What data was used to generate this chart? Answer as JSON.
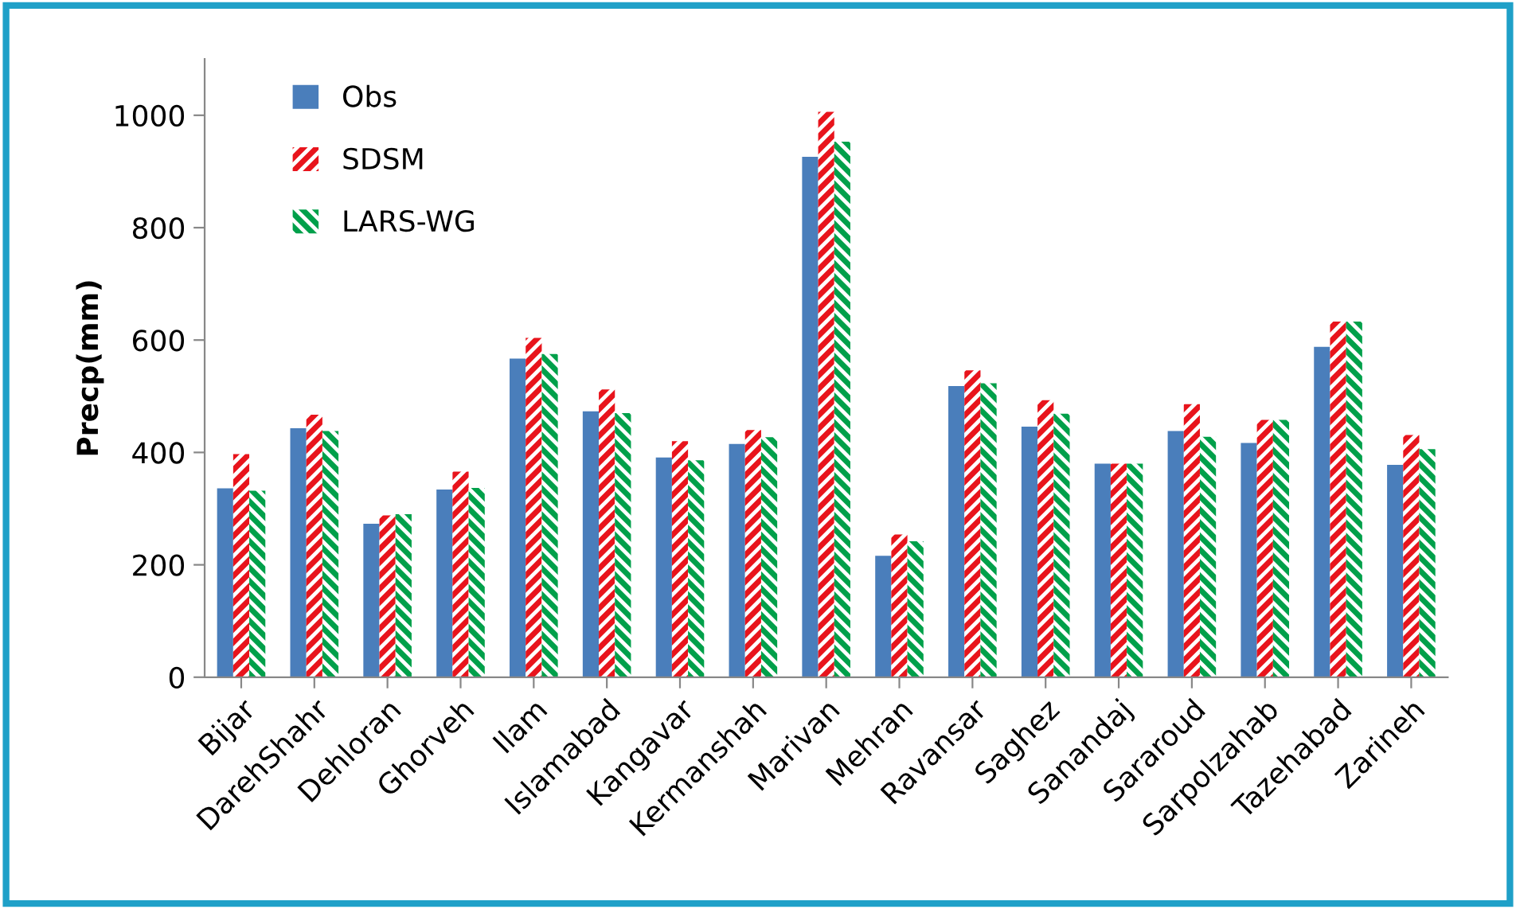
{
  "chart_data": {
    "type": "bar",
    "ylabel": "Precp(mm)",
    "categories": [
      "Bijar",
      "DarehShahr",
      "Dehloran",
      "Ghorveh",
      "Ilam",
      "Islamabad",
      "Kangavar",
      "Kermanshah",
      "Marivan",
      "Mehran",
      "Ravansar",
      "Saghez",
      "Sanandaj",
      "Sararoud",
      "Sarpolzahab",
      "Tazehabad",
      "Zarineh"
    ],
    "series": [
      {
        "name": "Obs",
        "color": "#4a7ebb",
        "values": [
          336,
          443,
          273,
          334,
          567,
          473,
          391,
          415,
          926,
          216,
          518,
          446,
          380,
          438,
          417,
          588,
          378
        ]
      },
      {
        "name": "SDSM",
        "color": "#e8141c",
        "values": [
          397,
          467,
          288,
          366,
          604,
          512,
          420,
          440,
          1006,
          254,
          546,
          493,
          380,
          486,
          458,
          633,
          431
        ]
      },
      {
        "name": "LARS-WG",
        "color": "#00a04a",
        "values": [
          332,
          438,
          290,
          337,
          575,
          470,
          386,
          427,
          953,
          242,
          523,
          469,
          380,
          428,
          458,
          633,
          406
        ]
      }
    ],
    "ylim": [
      0,
      1100
    ],
    "yticks": [
      0,
      200,
      400,
      600,
      800,
      1000
    ],
    "grid": false,
    "legend": "top left"
  }
}
